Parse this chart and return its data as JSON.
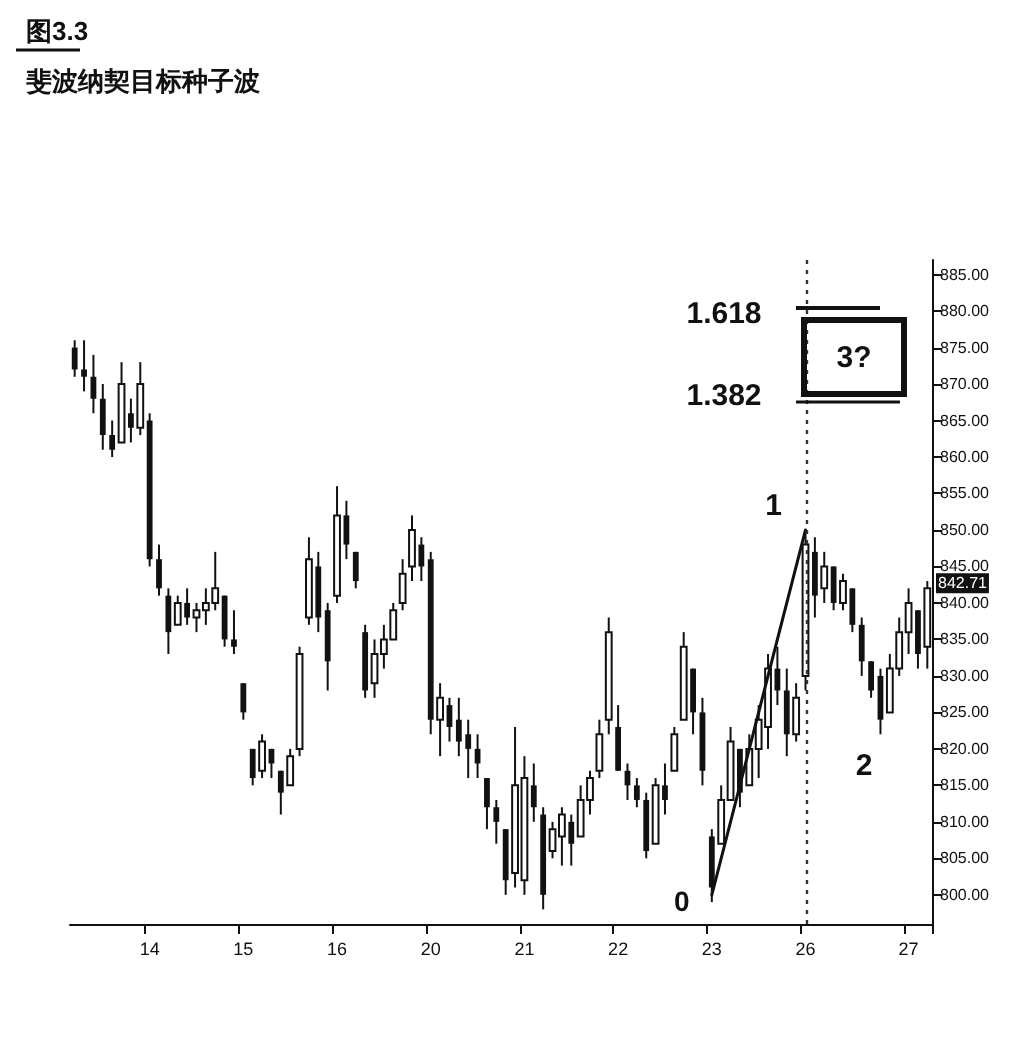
{
  "chart_data": {
    "type": "candlestick",
    "title": "图3.3",
    "subtitle": "斐波纳契目标种子波",
    "categories": [
      null,
      null,
      null,
      null,
      null,
      null,
      null,
      null,
      "14",
      null,
      null,
      null,
      null,
      null,
      null,
      null,
      null,
      null,
      "15",
      null,
      null,
      null,
      null,
      null,
      null,
      null,
      null,
      null,
      "16",
      null,
      null,
      null,
      null,
      null,
      null,
      null,
      null,
      null,
      "20",
      null,
      null,
      null,
      null,
      null,
      null,
      null,
      null,
      null,
      "21",
      null,
      null,
      null,
      null,
      null,
      null,
      null,
      null,
      null,
      "22",
      null,
      null,
      null,
      null,
      null,
      null,
      null,
      null,
      null,
      "23",
      null,
      null,
      null,
      null,
      null,
      null,
      null,
      null,
      null,
      "26",
      null,
      null,
      null,
      null,
      null,
      null,
      null,
      null,
      null,
      null,
      "27",
      null,
      null
    ],
    "ylim": [
      796,
      887
    ],
    "yticks": [
      {
        "value": 800,
        "label": "800.00"
      },
      {
        "value": 805,
        "label": "805.00"
      },
      {
        "value": 810,
        "label": "810.00"
      },
      {
        "value": 815,
        "label": "815.00"
      },
      {
        "value": 820,
        "label": "820.00"
      },
      {
        "value": 825,
        "label": "825.00"
      },
      {
        "value": 830,
        "label": "830.00"
      },
      {
        "value": 835,
        "label": "835.00"
      },
      {
        "value": 840,
        "label": "840.00"
      },
      {
        "value": 845,
        "label": "845.00"
      },
      {
        "value": 850,
        "label": "850.00"
      },
      {
        "value": 855,
        "label": "855.00"
      },
      {
        "value": 860,
        "label": "860.00"
      },
      {
        "value": 865,
        "label": "865.00"
      },
      {
        "value": 870,
        "label": "870.00"
      },
      {
        "value": 875,
        "label": "875.00"
      },
      {
        "value": 880,
        "label": "880.00"
      },
      {
        "value": 885,
        "label": "885.00"
      }
    ],
    "marker": "none",
    "series": [
      {
        "color": "#111111",
        "ohlc": [
          [
            875,
            876,
            871,
            872
          ],
          [
            872,
            876,
            869,
            871
          ],
          [
            871,
            874,
            866,
            868
          ],
          [
            868,
            870,
            861,
            863
          ],
          [
            863,
            865,
            860,
            861
          ],
          [
            862,
            873,
            862,
            870
          ],
          [
            866,
            868,
            862,
            864
          ],
          [
            864,
            873,
            863,
            870
          ],
          [
            865,
            866,
            845,
            846
          ],
          [
            846,
            848,
            841,
            842
          ],
          [
            841,
            842,
            833,
            836
          ],
          [
            837,
            841,
            837,
            840
          ],
          [
            840,
            842,
            837,
            838
          ],
          [
            838,
            840,
            836,
            839
          ],
          [
            839,
            842,
            837,
            840
          ],
          [
            840,
            847,
            839,
            842
          ],
          [
            841,
            841,
            834,
            835
          ],
          [
            835,
            839,
            833,
            834
          ],
          [
            829,
            829,
            824,
            825
          ],
          [
            820,
            820,
            815,
            816
          ],
          [
            817,
            822,
            816,
            821
          ],
          [
            820,
            820,
            816,
            818
          ],
          [
            817,
            817,
            811,
            814
          ],
          [
            815,
            820,
            815,
            819
          ],
          [
            820,
            834,
            819,
            833
          ],
          [
            838,
            849,
            837,
            846
          ],
          [
            845,
            847,
            836,
            838
          ],
          [
            839,
            840,
            828,
            832
          ],
          [
            841,
            856,
            840,
            852
          ],
          [
            852,
            854,
            846,
            848
          ],
          [
            847,
            847,
            842,
            843
          ],
          [
            836,
            837,
            827,
            828
          ],
          [
            829,
            835,
            827,
            833
          ],
          [
            833,
            837,
            831,
            835
          ],
          [
            835,
            840,
            835,
            839
          ],
          [
            840,
            846,
            839,
            844
          ],
          [
            845,
            852,
            843,
            850
          ],
          [
            848,
            849,
            843,
            845
          ],
          [
            846,
            847,
            822,
            824
          ],
          [
            824,
            829,
            819,
            827
          ],
          [
            826,
            827,
            821,
            823
          ],
          [
            824,
            827,
            819,
            821
          ],
          [
            822,
            824,
            816,
            820
          ],
          [
            820,
            822,
            816,
            818
          ],
          [
            816,
            816,
            809,
            812
          ],
          [
            812,
            813,
            807,
            810
          ],
          [
            809,
            809,
            800,
            802
          ],
          [
            803,
            823,
            801,
            815
          ],
          [
            802,
            819,
            800,
            816
          ],
          [
            815,
            818,
            810,
            812
          ],
          [
            811,
            812,
            798,
            800
          ],
          [
            806,
            810,
            805,
            809
          ],
          [
            808,
            812,
            804,
            811
          ],
          [
            810,
            811,
            804,
            807
          ],
          [
            808,
            815,
            808,
            813
          ],
          [
            813,
            817,
            811,
            816
          ],
          [
            817,
            824,
            816,
            822
          ],
          [
            824,
            838,
            822,
            836
          ],
          [
            823,
            826,
            817,
            817
          ],
          [
            817,
            818,
            813,
            815
          ],
          [
            815,
            816,
            812,
            813
          ],
          [
            813,
            814,
            805,
            806
          ],
          [
            807,
            816,
            807,
            815
          ],
          [
            815,
            818,
            811,
            813
          ],
          [
            817,
            823,
            817,
            822
          ],
          [
            824,
            836,
            824,
            834
          ],
          [
            831,
            831,
            822,
            825
          ],
          [
            825,
            827,
            815,
            817
          ],
          [
            808,
            809,
            799,
            801
          ],
          [
            807,
            815,
            807,
            813
          ],
          [
            813,
            823,
            813,
            821
          ],
          [
            820,
            820,
            812,
            814
          ],
          [
            815,
            822,
            815,
            820
          ],
          [
            820,
            826,
            816,
            824
          ],
          [
            823,
            833,
            820,
            831
          ],
          [
            831,
            834,
            826,
            828
          ],
          [
            828,
            831,
            819,
            822
          ],
          [
            822,
            829,
            821,
            827
          ],
          [
            830,
            850,
            828,
            848
          ],
          [
            847,
            849,
            838,
            841
          ],
          [
            842,
            847,
            840,
            845
          ],
          [
            845,
            845,
            839,
            840
          ],
          [
            840,
            844,
            839,
            843
          ],
          [
            842,
            842,
            836,
            837
          ],
          [
            837,
            838,
            830,
            832
          ],
          [
            832,
            832,
            827,
            828
          ],
          [
            830,
            831,
            822,
            824
          ],
          [
            825,
            833,
            825,
            831
          ],
          [
            831,
            838,
            830,
            836
          ],
          [
            836,
            842,
            833,
            840
          ],
          [
            839,
            839,
            831,
            833
          ],
          [
            834,
            843,
            831,
            842
          ]
        ]
      },
      {
        "type": "line",
        "color": "#111111",
        "x": [
          "23",
          "26"
        ],
        "values": [
          800,
          850
        ]
      }
    ],
    "ref_lines": [
      {
        "axis": "x",
        "value": "26",
        "line_style": "dotted"
      }
    ],
    "annotations": [
      "1.618",
      "1.382",
      "3?",
      {
        "text": "0",
        "x": "23",
        "y": 800
      },
      {
        "text": "1",
        "x": "26",
        "y": 850
      },
      "2",
      {
        "text": "842.71",
        "y": 842.71
      }
    ]
  }
}
